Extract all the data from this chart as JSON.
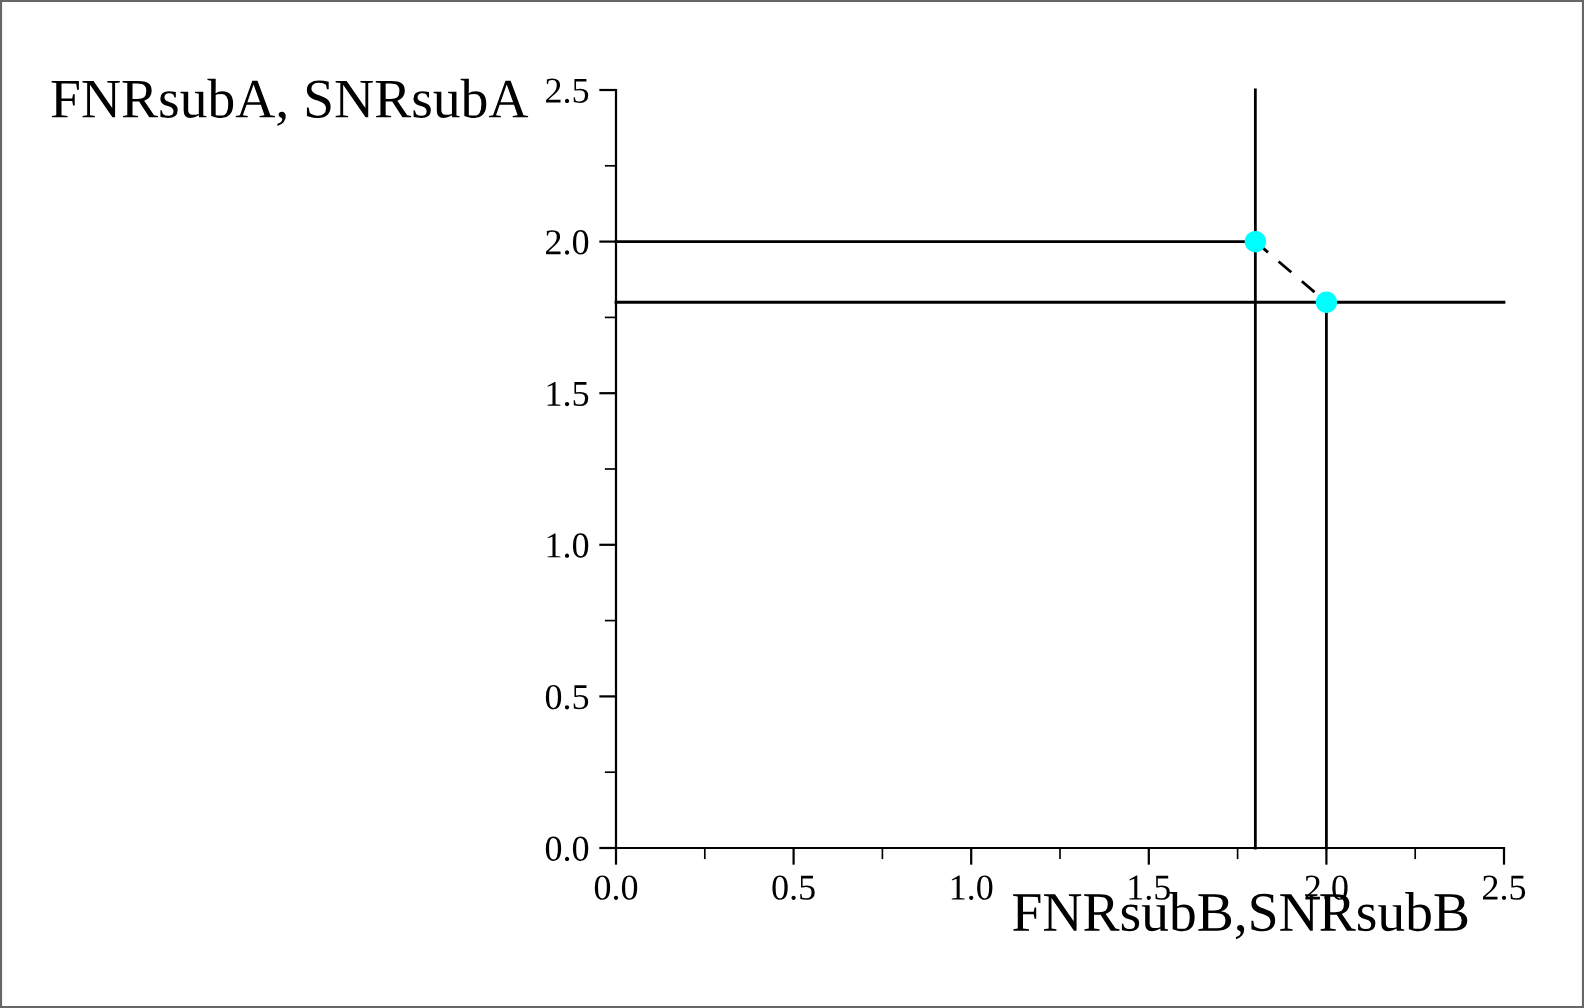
{
  "chart_data": {
    "type": "line",
    "xlabel": "FNRsubB,SNRsubB",
    "ylabel": "FNRsubA, SNRsubA",
    "series": [
      {
        "color": "#000000",
        "x": [
          1.8,
          2.0
        ],
        "values": [
          2.0,
          1.8
        ],
        "line_style": "dashed",
        "marker": "none"
      },
      {
        "type": "scatter",
        "color": "#00ffff",
        "x": [
          1.8,
          2.0
        ],
        "values": [
          2.0,
          1.8
        ],
        "marker": "circle"
      },
      {
        "color": "#000000",
        "x": [
          0,
          1.8
        ],
        "values": [
          2.0,
          2.0
        ],
        "line_style": "solid",
        "marker": "none"
      },
      {
        "color": "#000000",
        "x": [
          2.0,
          2.0
        ],
        "values": [
          0,
          1.8
        ],
        "line_style": "solid",
        "marker": "none"
      },
      {
        "color": "#000000",
        "x": [
          1.8,
          1.8
        ],
        "values": [
          0,
          2.5
        ],
        "line_style": "solid",
        "marker": "none"
      },
      {
        "color": "#000000",
        "x": [
          0,
          2.5
        ],
        "values": [
          1.8,
          1.8
        ],
        "line_style": "solid",
        "marker": "none"
      }
    ],
    "xlim": [
      0,
      2.5
    ],
    "ylim": [
      0,
      2.5
    ],
    "xticks": [
      {
        "value": 0,
        "label": "0.0"
      },
      0.5,
      {
        "value": 1,
        "label": "1.0"
      },
      1.5,
      {
        "value": 2,
        "label": "2.0"
      },
      2.5
    ],
    "yticks": [
      {
        "value": 0,
        "label": "0.0"
      },
      0.5,
      {
        "value": 1,
        "label": "1.0"
      },
      1.5,
      {
        "value": 2,
        "label": "2.0"
      },
      2.5
    ],
    "grid": false,
    "legend": false
  }
}
